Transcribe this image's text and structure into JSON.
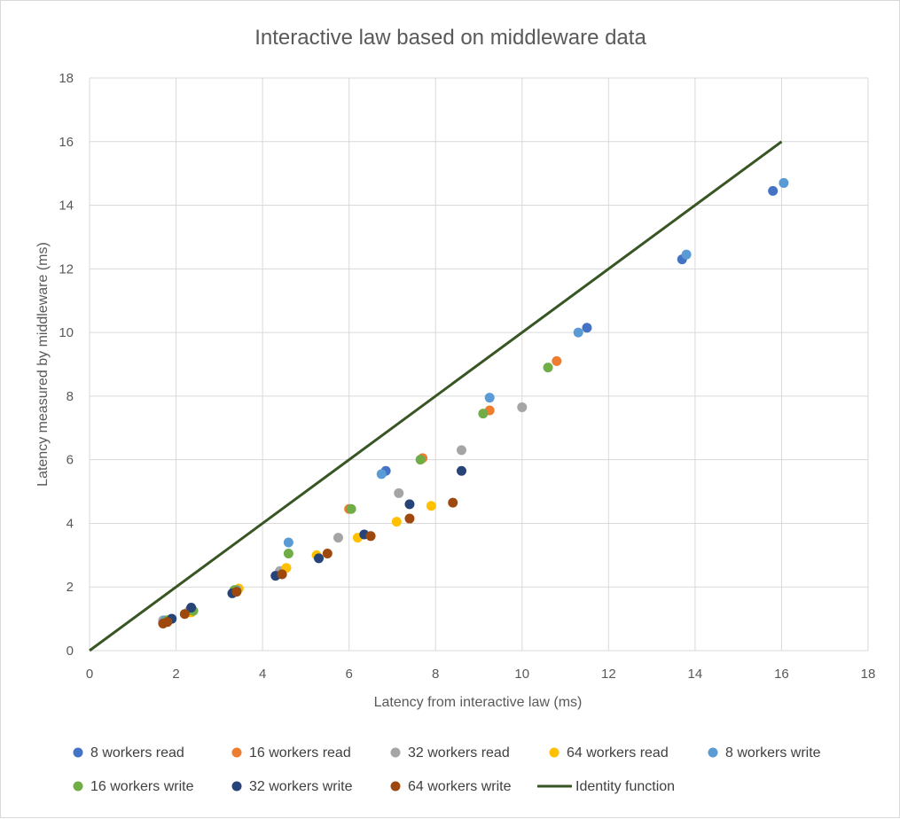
{
  "chart_data": {
    "type": "scatter",
    "title": "Interactive law based on middleware data",
    "xlabel": "Latency from interactive law (ms)",
    "ylabel": "Latency measured by middleware (ms)",
    "xlim": [
      0,
      18
    ],
    "ylim": [
      0,
      18
    ],
    "xticks": [
      "0",
      "2",
      "4",
      "6",
      "8",
      "10",
      "12",
      "14",
      "16",
      "18"
    ],
    "yticks": [
      "0",
      "2",
      "4",
      "6",
      "8",
      "10",
      "12",
      "14",
      "16",
      "18"
    ],
    "grid": true,
    "legend_position": "bottom",
    "series": [
      {
        "name": "8 workers read",
        "color": "#4472c4",
        "points": [
          [
            1.7,
            0.9
          ],
          [
            1.9,
            1.0
          ],
          [
            3.35,
            1.85
          ],
          [
            4.45,
            2.4
          ],
          [
            6.85,
            5.65
          ],
          [
            11.5,
            10.15
          ],
          [
            13.7,
            12.3
          ],
          [
            15.8,
            14.45
          ]
        ]
      },
      {
        "name": "16 workers read",
        "color": "#ed7d31",
        "points": [
          [
            1.75,
            0.9
          ],
          [
            2.35,
            1.3
          ],
          [
            3.4,
            1.9
          ],
          [
            4.4,
            2.45
          ],
          [
            6.0,
            4.45
          ],
          [
            7.7,
            6.05
          ],
          [
            9.25,
            7.55
          ],
          [
            10.8,
            9.1
          ]
        ]
      },
      {
        "name": "32 workers read",
        "color": "#a5a5a5",
        "points": [
          [
            1.7,
            0.95
          ],
          [
            2.3,
            1.25
          ],
          [
            3.35,
            1.9
          ],
          [
            4.4,
            2.5
          ],
          [
            5.75,
            3.55
          ],
          [
            7.15,
            4.95
          ],
          [
            8.6,
            6.3
          ],
          [
            10.0,
            7.65
          ]
        ]
      },
      {
        "name": "64 workers read",
        "color": "#ffc000",
        "points": [
          [
            1.8,
            0.95
          ],
          [
            2.35,
            1.2
          ],
          [
            3.45,
            1.95
          ],
          [
            4.55,
            2.6
          ],
          [
            5.25,
            3.0
          ],
          [
            6.2,
            3.55
          ],
          [
            7.1,
            4.05
          ],
          [
            7.9,
            4.55
          ]
        ]
      },
      {
        "name": "8 workers write",
        "color": "#5b9bd5",
        "points": [
          [
            1.75,
            0.95
          ],
          [
            3.4,
            1.9
          ],
          [
            4.6,
            3.4
          ],
          [
            6.75,
            5.55
          ],
          [
            9.25,
            7.95
          ],
          [
            11.3,
            10.0
          ],
          [
            13.8,
            12.45
          ],
          [
            16.05,
            14.7
          ]
        ]
      },
      {
        "name": "16 workers write",
        "color": "#70ad47",
        "points": [
          [
            1.8,
            0.95
          ],
          [
            2.4,
            1.25
          ],
          [
            3.35,
            1.9
          ],
          [
            4.6,
            3.05
          ],
          [
            6.05,
            4.45
          ],
          [
            7.65,
            6.0
          ],
          [
            9.1,
            7.45
          ],
          [
            10.6,
            8.9
          ]
        ]
      },
      {
        "name": "32 workers write",
        "color": "#264478",
        "points": [
          [
            1.9,
            1.0
          ],
          [
            2.35,
            1.35
          ],
          [
            3.3,
            1.8
          ],
          [
            4.3,
            2.35
          ],
          [
            5.3,
            2.9
          ],
          [
            6.35,
            3.65
          ],
          [
            7.4,
            4.6
          ],
          [
            8.6,
            5.65
          ]
        ]
      },
      {
        "name": "64 workers write",
        "color": "#9e480e",
        "points": [
          [
            1.7,
            0.85
          ],
          [
            1.8,
            0.9
          ],
          [
            2.2,
            1.15
          ],
          [
            3.4,
            1.85
          ],
          [
            4.45,
            2.4
          ],
          [
            5.5,
            3.05
          ],
          [
            6.5,
            3.6
          ],
          [
            7.4,
            4.15
          ],
          [
            8.4,
            4.65
          ]
        ]
      }
    ],
    "lines": [
      {
        "name": "Identity function",
        "color": "#375623",
        "points": [
          [
            0,
            0
          ],
          [
            16,
            16
          ]
        ]
      }
    ]
  }
}
